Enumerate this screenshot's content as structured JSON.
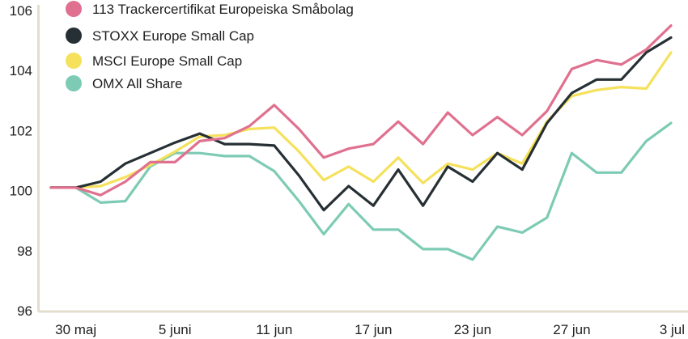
{
  "chart_data": {
    "type": "line",
    "title": "",
    "xlabel": "",
    "ylabel": "",
    "ylim": [
      96,
      106
    ],
    "yticks": [
      "96",
      "98",
      "100",
      "102",
      "104",
      "106"
    ],
    "xticks": [
      {
        "label": "30 maj",
        "index": 1
      },
      {
        "label": "5 juni",
        "index": 5
      },
      {
        "label": "11 jun",
        "index": 9
      },
      {
        "label": "17 jun",
        "index": 13
      },
      {
        "label": "23 jun",
        "index": 17
      },
      {
        "label": "27 jun",
        "index": 21
      },
      {
        "label": "3 jul",
        "index": 26
      }
    ],
    "grid": false,
    "legend_position": "top-left",
    "series": [
      {
        "name": "113 Trackercertifikat Europeiska Småbolag",
        "color": "#e0708f",
        "values": [
          100.1,
          100.1,
          99.85,
          100.3,
          100.95,
          100.95,
          101.65,
          101.75,
          102.15,
          102.85,
          102.05,
          101.1,
          101.4,
          101.55,
          102.3,
          101.55,
          102.6,
          101.85,
          102.45,
          101.85,
          102.65,
          104.05,
          104.35,
          104.2,
          104.7,
          105.5
        ]
      },
      {
        "name": "STOXX Europe Small Cap",
        "color": "#263034",
        "values": [
          100.1,
          100.1,
          100.3,
          100.9,
          101.25,
          101.6,
          101.9,
          101.55,
          101.55,
          101.5,
          100.5,
          99.35,
          100.15,
          99.5,
          100.7,
          99.5,
          100.8,
          100.3,
          101.25,
          100.7,
          102.25,
          103.25,
          103.7,
          103.7,
          104.6,
          105.1
        ]
      },
      {
        "name": "MSCI Europe Small Cap",
        "color": "#f5e15c",
        "values": [
          100.1,
          100.1,
          100.15,
          100.45,
          100.85,
          101.3,
          101.8,
          101.85,
          102.05,
          102.1,
          101.3,
          100.35,
          100.8,
          100.3,
          101.1,
          100.25,
          100.9,
          100.7,
          101.25,
          100.9,
          102.3,
          103.15,
          103.35,
          103.45,
          103.4,
          104.6
        ]
      },
      {
        "name": "OMX All Share",
        "color": "#7dcbb4",
        "values": [
          100.1,
          100.1,
          99.6,
          99.65,
          100.8,
          101.25,
          101.25,
          101.15,
          101.15,
          100.65,
          99.65,
          98.55,
          99.55,
          98.7,
          98.7,
          98.05,
          98.05,
          97.7,
          98.8,
          98.6,
          99.1,
          101.25,
          100.6,
          100.6,
          101.65,
          102.25
        ]
      }
    ]
  }
}
